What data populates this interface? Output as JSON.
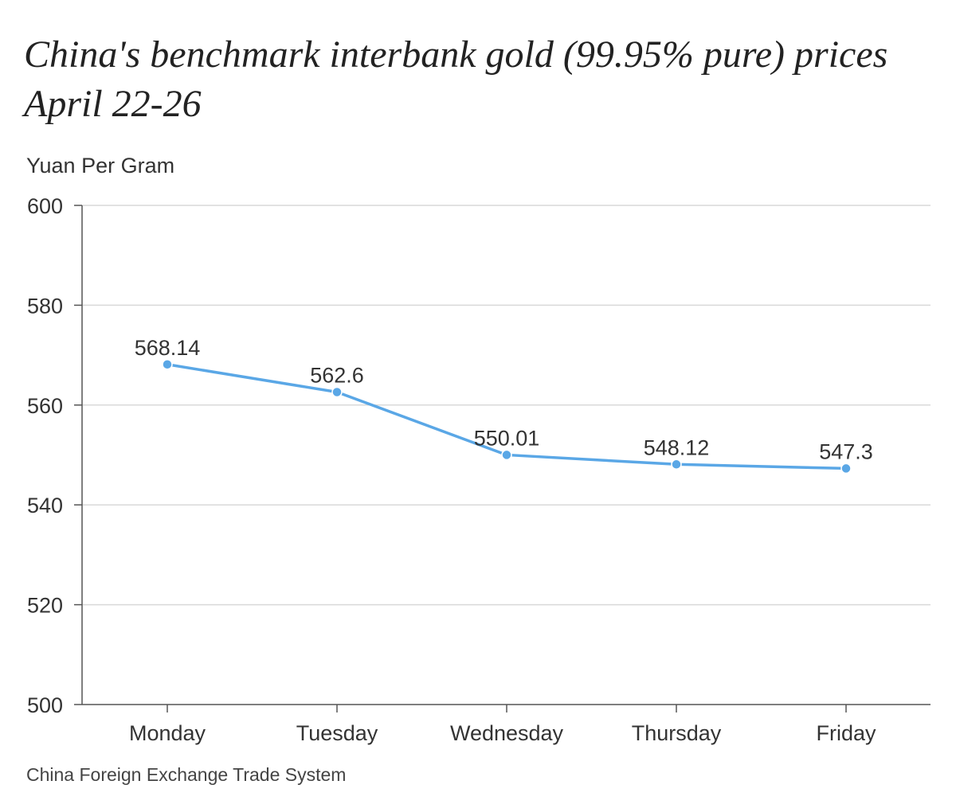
{
  "chart_data": {
    "type": "line",
    "title": "China's benchmark interbank gold (99.95% pure) prices April 22-26",
    "ylabel": "Yuan Per Gram",
    "xlabel": "",
    "categories": [
      "Monday",
      "Tuesday",
      "Wednesday",
      "Thursday",
      "Friday"
    ],
    "series": [
      {
        "values": [
          568.14,
          562.6,
          550.01,
          548.12,
          547.3
        ],
        "value_labels": [
          "568.14",
          "562.6",
          "550.01",
          "548.12",
          "547.3"
        ],
        "color": "#5AA7E6"
      }
    ],
    "ylim": [
      500,
      600
    ],
    "y_ticks": [
      500,
      520,
      540,
      560,
      580,
      600
    ],
    "grid": true,
    "source": "China Foreign Exchange Trade System"
  },
  "colors": {
    "line": "#5AA7E6",
    "grid": "#d9d9d9",
    "axis": "#555555"
  }
}
